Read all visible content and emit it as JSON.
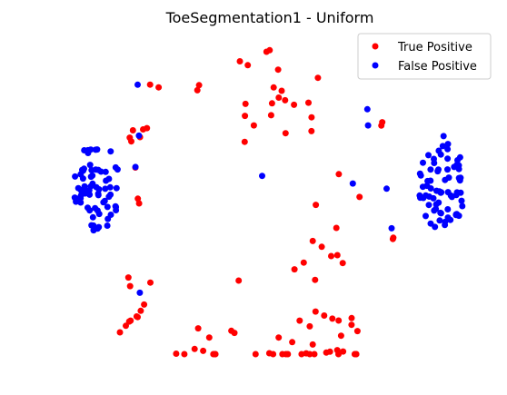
{
  "chart_data": {
    "type": "scatter",
    "title": "ToeSegmentation1 - Uniform",
    "xlabel": "",
    "ylabel": "",
    "axes_visible": false,
    "grid": false,
    "legend_position": "top-right",
    "xlim": [
      0,
      1
    ],
    "ylim": [
      0,
      1
    ],
    "series": [
      {
        "name": "True Positive",
        "color": "#ff0000",
        "points": [
          [
            0.4913,
            0.9651
          ],
          [
            0.4985,
            0.9702
          ],
          [
            0.4309,
            0.9349
          ],
          [
            0.4489,
            0.9224
          ],
          [
            0.5178,
            0.9082
          ],
          [
            0.608,
            0.8819
          ],
          [
            0.3383,
            0.8585
          ],
          [
            0.3345,
            0.8423
          ],
          [
            0.2272,
            0.8602
          ],
          [
            0.2466,
            0.8517
          ],
          [
            0.5077,
            0.8512
          ],
          [
            0.5258,
            0.8405
          ],
          [
            0.5191,
            0.8187
          ],
          [
            0.5336,
            0.8105
          ],
          [
            0.504,
            0.8006
          ],
          [
            0.5538,
            0.796
          ],
          [
            0.5867,
            0.8026
          ],
          [
            0.4438,
            0.7988
          ],
          [
            0.4425,
            0.7606
          ],
          [
            0.5019,
            0.7627
          ],
          [
            0.5937,
            0.7559
          ],
          [
            0.4626,
            0.7301
          ],
          [
            0.5935,
            0.712
          ],
          [
            0.5346,
            0.7051
          ],
          [
            0.4418,
            0.6776
          ],
          [
            0.2113,
            0.7173
          ],
          [
            0.2043,
            0.6928
          ],
          [
            0.2199,
            0.7214
          ],
          [
            0.1882,
            0.7145
          ],
          [
            0.1811,
            0.691
          ],
          [
            0.1845,
            0.6791
          ],
          [
            0.7541,
            0.7402
          ],
          [
            0.7519,
            0.7296
          ],
          [
            0.1938,
            0.5957
          ],
          [
            0.1993,
            0.4963
          ],
          [
            0.6555,
            0.5744
          ],
          [
            0.7025,
            0.5018
          ],
          [
            0.6034,
            0.4765
          ],
          [
            0.2023,
            0.4811
          ],
          [
            0.6498,
            0.4029
          ],
          [
            0.7791,
            0.3716
          ],
          [
            0.7782,
            0.3674
          ],
          [
            0.5963,
            0.3613
          ],
          [
            0.6167,
            0.3426
          ],
          [
            0.6381,
            0.3131
          ],
          [
            0.6521,
            0.3158
          ],
          [
            0.5758,
            0.2921
          ],
          [
            0.6643,
            0.2907
          ],
          [
            0.5548,
            0.2707
          ],
          [
            0.6016,
            0.237
          ],
          [
            0.1779,
            0.2446
          ],
          [
            0.4283,
            0.2347
          ],
          [
            0.1818,
            0.217
          ],
          [
            0.2279,
            0.2284
          ],
          [
            0.2137,
            0.1582
          ],
          [
            0.2059,
            0.1384
          ],
          [
            0.1967,
            0.1203
          ],
          [
            0.199,
            0.1182
          ],
          [
            0.1828,
            0.1069
          ],
          [
            0.1797,
            0.1042
          ],
          [
            0.1722,
            0.0904
          ],
          [
            0.6027,
            0.1359
          ],
          [
            0.6223,
            0.1232
          ],
          [
            0.6408,
            0.1134
          ],
          [
            0.655,
            0.1072
          ],
          [
            0.6846,
            0.115
          ],
          [
            0.5667,
            0.1069
          ],
          [
            0.6844,
            0.0935
          ],
          [
            0.3363,
            0.0824
          ],
          [
            0.5895,
            0.0888
          ],
          [
            0.4116,
            0.0745
          ],
          [
            0.4186,
            0.0678
          ],
          [
            0.6978,
            0.0735
          ],
          [
            0.3614,
            0.053
          ],
          [
            0.5189,
            0.053
          ],
          [
            0.1588,
            0.0697
          ],
          [
            0.6607,
            0.0588
          ],
          [
            0.5963,
            0.0307
          ],
          [
            0.5497,
            0.0383
          ],
          [
            0.6519,
            0.0128
          ],
          [
            0.6652,
            0.0083
          ],
          [
            0.3477,
            0.0103
          ],
          [
            0.6354,
            0.0078
          ],
          [
            0.627,
            0.0049
          ],
          [
            0.5815,
            0.0027
          ],
          [
            0.4667,
            0.0
          ],
          [
            0.4978,
            0.003
          ],
          [
            0.2863,
            0.0015
          ],
          [
            0.3283,
            0.0166
          ],
          [
            0.305,
            0.0
          ],
          [
            0.5397,
            0.0
          ],
          [
            0.5709,
            0.0
          ],
          [
            0.5064,
            0.0
          ],
          [
            0.6547,
            0.0
          ],
          [
            0.6946,
            0.0
          ],
          [
            0.3708,
            0.0
          ],
          [
            0.5274,
            0.0
          ],
          [
            0.5999,
            0.0
          ],
          [
            0.3755,
            0.0
          ],
          [
            0.5355,
            0.0
          ],
          [
            0.5894,
            0.0
          ],
          [
            0.6951,
            0.0
          ],
          [
            0.6915,
            0.0
          ],
          [
            0.3744,
            0.0
          ],
          [
            0.3743,
            0.0
          ]
        ]
      },
      {
        "name": "False Positive",
        "color": "#0000ff",
        "points": [
          [
            0.199,
            0.86
          ],
          [
            0.7202,
            0.7818
          ],
          [
            0.7218,
            0.7301
          ],
          [
            0.2018,
            0.6975
          ],
          [
            0.8931,
            0.696
          ],
          [
            0.194,
            0.5975
          ],
          [
            0.4814,
            0.569
          ],
          [
            0.6872,
            0.5446
          ],
          [
            0.764,
            0.528
          ],
          [
            0.204,
            0.196
          ],
          [
            0.7753,
            0.4016
          ]
        ]
      }
    ],
    "clusters": [
      {
        "center": [
          0.1045,
          0.5364
        ],
        "count": 70,
        "color": "#0000ff"
      },
      {
        "center": [
          0.8911,
          0.536
        ],
        "count": 70,
        "color": "#0000ff"
      }
    ]
  },
  "legend": {
    "items": [
      {
        "label": "True Positive",
        "color": "#ff0000"
      },
      {
        "label": "False Positive",
        "color": "#0000ff"
      }
    ]
  }
}
